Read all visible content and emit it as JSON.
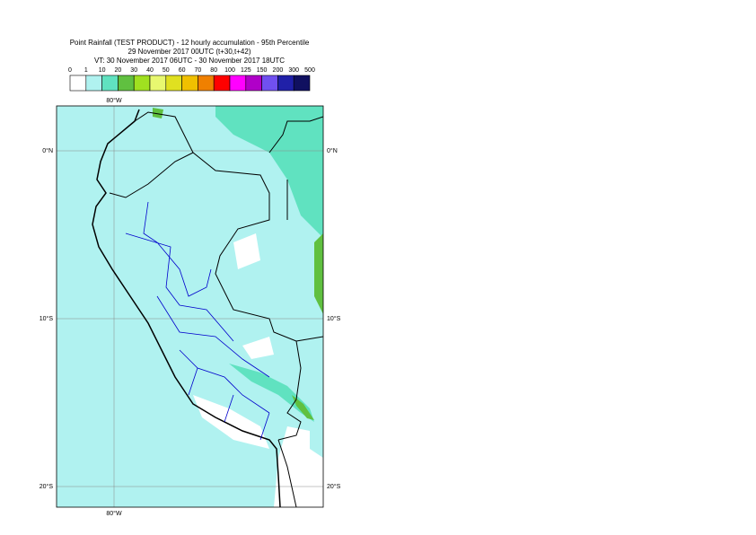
{
  "header": {
    "lines": [
      "Point Rainfall (TEST PRODUCT) - 12 hourly accumulation - 95th Percentile",
      "29 November 2017 00UTC (t+30,t+42)",
      "VT: 30 November 2017 06UTC - 30 November 2017 18UTC"
    ]
  },
  "legend": {
    "thresholds": [
      0,
      1,
      10,
      20,
      30,
      40,
      50,
      60,
      70,
      80,
      100,
      125,
      150,
      200,
      300,
      500
    ],
    "colors": [
      "#ffffff",
      "#b0f2f0",
      "#60e2c0",
      "#60c040",
      "#a0e020",
      "#e8f870",
      "#e0e020",
      "#f0c000",
      "#f08000",
      "#ff0000",
      "#ff00ff",
      "#b000c8",
      "#7050f0",
      "#2020a8",
      "#101060"
    ]
  },
  "map": {
    "longitude_label": "80°W",
    "latitude_labels": [
      "0°N",
      "10°S",
      "20°S"
    ]
  }
}
